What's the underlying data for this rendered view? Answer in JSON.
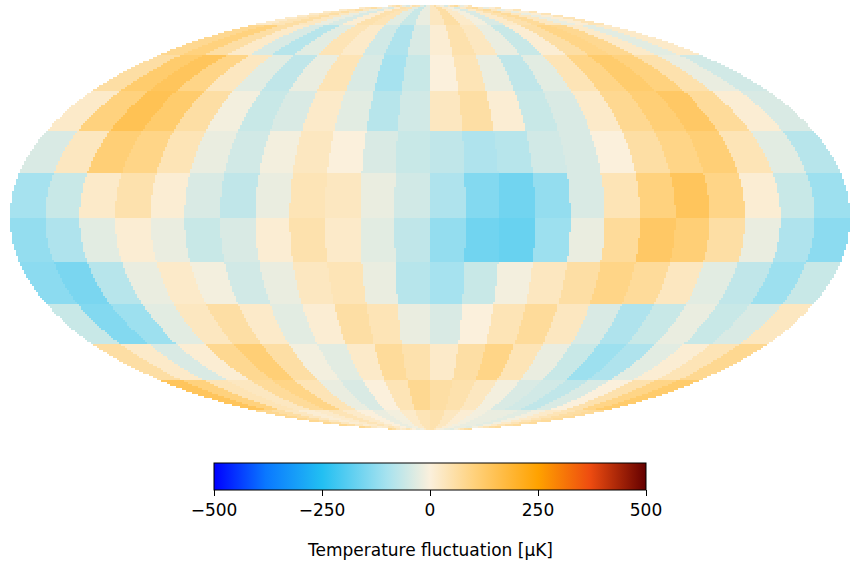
{
  "chart_data": {
    "type": "heatmap",
    "tick_labels": false,
    "colorbar": {
      "label": "Temperature fluctuation [μK]",
      "range": [
        -500,
        500
      ],
      "ticks": [
        -500,
        -250,
        0,
        250,
        500
      ]
    },
    "cells": [
      [
        20,
        40,
        60,
        30,
        -20,
        -40,
        10,
        50,
        40,
        -30,
        -60,
        -20,
        30,
        60,
        20,
        -10,
        -40,
        20,
        50,
        70,
        30,
        -20,
        10,
        40
      ],
      [
        80,
        100,
        60,
        20,
        -40,
        -80,
        -30,
        40,
        20,
        -50,
        -90,
        -40,
        10,
        50,
        30,
        -20,
        -60,
        10,
        60,
        90,
        80,
        20,
        -30,
        20
      ],
      [
        60,
        120,
        140,
        90,
        30,
        -30,
        -70,
        -20,
        40,
        -40,
        -100,
        -60,
        0,
        40,
        -20,
        -70,
        -30,
        40,
        90,
        120,
        100,
        50,
        -20,
        -50
      ],
      [
        20,
        100,
        150,
        120,
        60,
        -10,
        -60,
        -40,
        20,
        -30,
        -80,
        -50,
        30,
        60,
        10,
        -60,
        -40,
        20,
        80,
        110,
        130,
        70,
        10,
        -40
      ],
      [
        -40,
        30,
        110,
        90,
        40,
        -20,
        -50,
        -10,
        30,
        0,
        -40,
        -60,
        -70,
        -90,
        -80,
        -50,
        -40,
        0,
        60,
        90,
        110,
        40,
        -30,
        -80
      ],
      [
        -100,
        -60,
        20,
        50,
        10,
        -40,
        -70,
        -20,
        40,
        30,
        -20,
        -50,
        -90,
        -140,
        -160,
        -120,
        -40,
        40,
        100,
        140,
        90,
        10,
        -60,
        -110
      ],
      [
        -120,
        -90,
        -30,
        10,
        -20,
        -60,
        -40,
        10,
        50,
        20,
        -30,
        -70,
        -120,
        -160,
        -170,
        -110,
        -20,
        70,
        130,
        110,
        60,
        -20,
        -90,
        -130
      ],
      [
        -130,
        -150,
        -80,
        -20,
        20,
        -10,
        -50,
        -20,
        30,
        40,
        -20,
        -80,
        -100,
        -60,
        -10,
        30,
        60,
        90,
        70,
        30,
        -30,
        -70,
        -110,
        -60
      ],
      [
        -60,
        -140,
        -110,
        -30,
        30,
        60,
        20,
        -30,
        10,
        60,
        40,
        -20,
        -40,
        0,
        40,
        70,
        30,
        -40,
        -90,
        -60,
        -20,
        -60,
        -40,
        30
      ],
      [
        60,
        20,
        -40,
        10,
        80,
        110,
        60,
        -10,
        -30,
        20,
        70,
        50,
        20,
        60,
        90,
        40,
        -20,
        -60,
        -110,
        -90,
        -30,
        10,
        40,
        80
      ],
      [
        140,
        100,
        40,
        30,
        70,
        90,
        40,
        -20,
        -40,
        0,
        40,
        80,
        60,
        50,
        30,
        -10,
        -40,
        -50,
        -70,
        -40,
        0,
        50,
        90,
        120
      ],
      [
        80,
        60,
        30,
        10,
        20,
        40,
        20,
        0,
        -20,
        -10,
        20,
        40,
        50,
        30,
        10,
        -10,
        -20,
        -20,
        -30,
        -10,
        20,
        40,
        60,
        70
      ]
    ]
  }
}
